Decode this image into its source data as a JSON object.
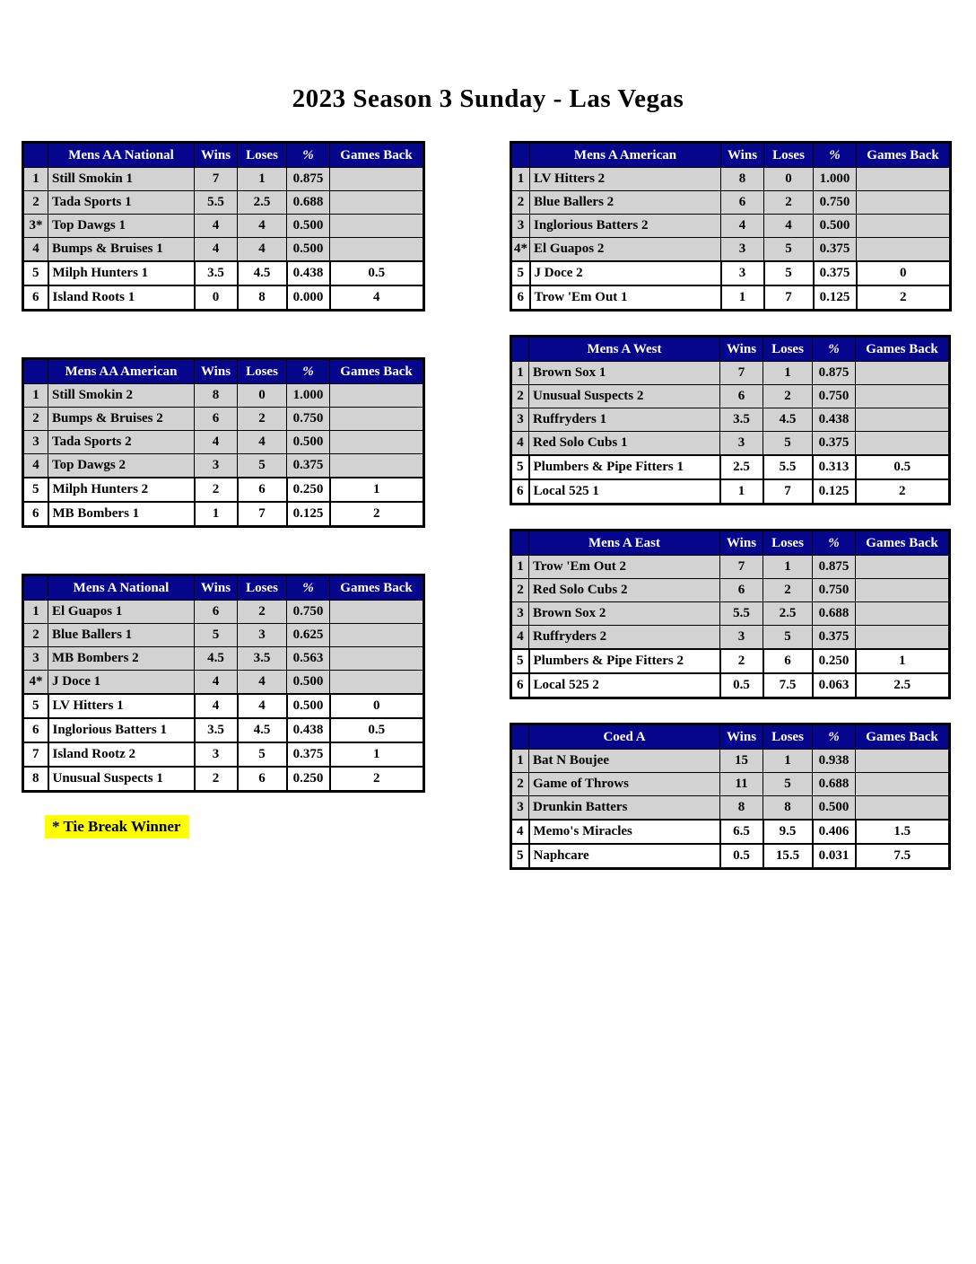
{
  "page": {
    "title": "2023 Season 3 Sunday - Las Vegas",
    "note": "* Tie Break Winner"
  },
  "colors": {
    "header_bg": "#06068d",
    "header_text": "#ffffff",
    "row_gray": "#d2d2d2",
    "row_white": "#ffffff",
    "note_highlight": "#ffff00",
    "border": "#000000"
  },
  "columns": [
    "Wins",
    "Loses",
    "%",
    "Games Back"
  ],
  "left_tables": [
    {
      "division": "Mens AA National",
      "playoff_cutoff": 4,
      "rows": [
        {
          "rank": "1",
          "team": "Still Smokin 1",
          "wins": "7",
          "loses": "1",
          "pct": "0.875",
          "games_back": ""
        },
        {
          "rank": "2",
          "team": "Tada Sports 1",
          "wins": "5.5",
          "loses": "2.5",
          "pct": "0.688",
          "games_back": ""
        },
        {
          "rank": "3*",
          "team": "Top Dawgs 1",
          "wins": "4",
          "loses": "4",
          "pct": "0.500",
          "games_back": ""
        },
        {
          "rank": "4",
          "team": "Bumps & Bruises 1",
          "wins": "4",
          "loses": "4",
          "pct": "0.500",
          "games_back": ""
        },
        {
          "rank": "5",
          "team": "Milph Hunters 1",
          "wins": "3.5",
          "loses": "4.5",
          "pct": "0.438",
          "games_back": "0.5"
        },
        {
          "rank": "6",
          "team": "Island Roots 1",
          "wins": "0",
          "loses": "8",
          "pct": "0.000",
          "games_back": "4"
        }
      ]
    },
    {
      "division": "Mens AA American",
      "playoff_cutoff": 4,
      "rows": [
        {
          "rank": "1",
          "team": "Still Smokin 2",
          "wins": "8",
          "loses": "0",
          "pct": "1.000",
          "games_back": ""
        },
        {
          "rank": "2",
          "team": "Bumps & Bruises 2",
          "wins": "6",
          "loses": "2",
          "pct": "0.750",
          "games_back": ""
        },
        {
          "rank": "3",
          "team": "Tada Sports 2",
          "wins": "4",
          "loses": "4",
          "pct": "0.500",
          "games_back": ""
        },
        {
          "rank": "4",
          "team": "Top Dawgs 2",
          "wins": "3",
          "loses": "5",
          "pct": "0.375",
          "games_back": ""
        },
        {
          "rank": "5",
          "team": "Milph Hunters 2",
          "wins": "2",
          "loses": "6",
          "pct": "0.250",
          "games_back": "1"
        },
        {
          "rank": "6",
          "team": "MB Bombers 1",
          "wins": "1",
          "loses": "7",
          "pct": "0.125",
          "games_back": "2"
        }
      ]
    },
    {
      "division": "Mens A National",
      "playoff_cutoff": 4,
      "rows": [
        {
          "rank": "1",
          "team": "El Guapos 1",
          "wins": "6",
          "loses": "2",
          "pct": "0.750",
          "games_back": ""
        },
        {
          "rank": "2",
          "team": "Blue Ballers 1",
          "wins": "5",
          "loses": "3",
          "pct": "0.625",
          "games_back": ""
        },
        {
          "rank": "3",
          "team": "MB Bombers 2",
          "wins": "4.5",
          "loses": "3.5",
          "pct": "0.563",
          "games_back": ""
        },
        {
          "rank": "4*",
          "team": "J Doce 1",
          "wins": "4",
          "loses": "4",
          "pct": "0.500",
          "games_back": ""
        },
        {
          "rank": "5",
          "team": "LV Hitters 1",
          "wins": "4",
          "loses": "4",
          "pct": "0.500",
          "games_back": "0"
        },
        {
          "rank": "6",
          "team": "Inglorious Batters 1",
          "wins": "3.5",
          "loses": "4.5",
          "pct": "0.438",
          "games_back": "0.5"
        },
        {
          "rank": "7",
          "team": "Island Rootz 2",
          "wins": "3",
          "loses": "5",
          "pct": "0.375",
          "games_back": "1"
        },
        {
          "rank": "8",
          "team": "Unusual Suspects 1",
          "wins": "2",
          "loses": "6",
          "pct": "0.250",
          "games_back": "2"
        }
      ]
    }
  ],
  "right_tables": [
    {
      "division": "Mens A American",
      "playoff_cutoff": 4,
      "rows": [
        {
          "rank": "1",
          "team": "LV Hitters 2",
          "wins": "8",
          "loses": "0",
          "pct": "1.000",
          "games_back": ""
        },
        {
          "rank": "2",
          "team": "Blue Ballers 2",
          "wins": "6",
          "loses": "2",
          "pct": "0.750",
          "games_back": ""
        },
        {
          "rank": "3",
          "team": "Inglorious Batters 2",
          "wins": "4",
          "loses": "4",
          "pct": "0.500",
          "games_back": ""
        },
        {
          "rank": "4*",
          "team": "El Guapos 2",
          "wins": "3",
          "loses": "5",
          "pct": "0.375",
          "games_back": ""
        },
        {
          "rank": "5",
          "team": "J Doce 2",
          "wins": "3",
          "loses": "5",
          "pct": "0.375",
          "games_back": "0"
        },
        {
          "rank": "6",
          "team": "Trow 'Em Out 1",
          "wins": "1",
          "loses": "7",
          "pct": "0.125",
          "games_back": "2"
        }
      ]
    },
    {
      "division": "Mens A West",
      "playoff_cutoff": 4,
      "rows": [
        {
          "rank": "1",
          "team": "Brown Sox 1",
          "wins": "7",
          "loses": "1",
          "pct": "0.875",
          "games_back": ""
        },
        {
          "rank": "2",
          "team": "Unusual Suspects 2",
          "wins": "6",
          "loses": "2",
          "pct": "0.750",
          "games_back": ""
        },
        {
          "rank": "3",
          "team": "Ruffryders 1",
          "wins": "3.5",
          "loses": "4.5",
          "pct": "0.438",
          "games_back": ""
        },
        {
          "rank": "4",
          "team": "Red Solo Cubs 1",
          "wins": "3",
          "loses": "5",
          "pct": "0.375",
          "games_back": ""
        },
        {
          "rank": "5",
          "team": "Plumbers & Pipe Fitters 1",
          "wins": "2.5",
          "loses": "5.5",
          "pct": "0.313",
          "games_back": "0.5"
        },
        {
          "rank": "6",
          "team": "Local 525 1",
          "wins": "1",
          "loses": "7",
          "pct": "0.125",
          "games_back": "2"
        }
      ]
    },
    {
      "division": "Mens A East",
      "playoff_cutoff": 4,
      "rows": [
        {
          "rank": "1",
          "team": "Trow 'Em Out 2",
          "wins": "7",
          "loses": "1",
          "pct": "0.875",
          "games_back": ""
        },
        {
          "rank": "2",
          "team": "Red Solo Cubs 2",
          "wins": "6",
          "loses": "2",
          "pct": "0.750",
          "games_back": ""
        },
        {
          "rank": "3",
          "team": "Brown Sox 2",
          "wins": "5.5",
          "loses": "2.5",
          "pct": "0.688",
          "games_back": ""
        },
        {
          "rank": "4",
          "team": "Ruffryders 2",
          "wins": "3",
          "loses": "5",
          "pct": "0.375",
          "games_back": ""
        },
        {
          "rank": "5",
          "team": "Plumbers & Pipe Fitters 2",
          "wins": "2",
          "loses": "6",
          "pct": "0.250",
          "games_back": "1"
        },
        {
          "rank": "6",
          "team": "Local 525 2",
          "wins": "0.5",
          "loses": "7.5",
          "pct": "0.063",
          "games_back": "2.5"
        }
      ]
    },
    {
      "division": "Coed A",
      "playoff_cutoff": 3,
      "rows": [
        {
          "rank": "1",
          "team": "Bat N Boujee",
          "wins": "15",
          "loses": "1",
          "pct": "0.938",
          "games_back": ""
        },
        {
          "rank": "2",
          "team": "Game of Throws",
          "wins": "11",
          "loses": "5",
          "pct": "0.688",
          "games_back": ""
        },
        {
          "rank": "3",
          "team": "Drunkin Batters",
          "wins": "8",
          "loses": "8",
          "pct": "0.500",
          "games_back": ""
        },
        {
          "rank": "4",
          "team": "Memo's Miracles",
          "wins": "6.5",
          "loses": "9.5",
          "pct": "0.406",
          "games_back": "1.5"
        },
        {
          "rank": "5",
          "team": "Naphcare",
          "wins": "0.5",
          "loses": "15.5",
          "pct": "0.031",
          "games_back": "7.5"
        }
      ]
    }
  ]
}
